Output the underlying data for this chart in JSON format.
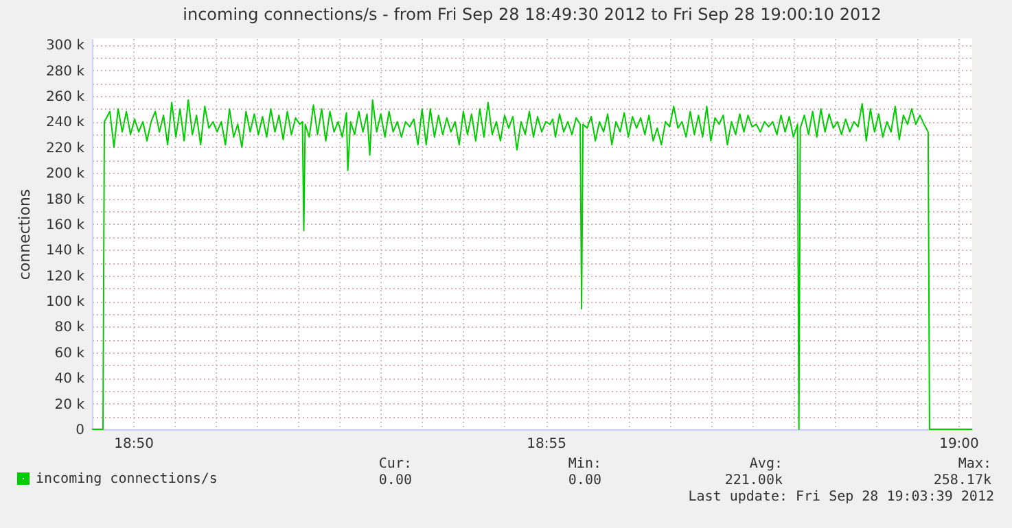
{
  "chart_data": {
    "type": "line",
    "title": "incoming connections/s - from Fri Sep 28 18:49:30 2012 to Fri Sep 28 19:00:10 2012",
    "ylabel": "connections",
    "x": [
      "2012-09-28T18:49:30",
      "2012-09-28T18:49:38",
      "2012-09-28T18:49:39",
      "2012-09-28T18:49:43",
      "2012-09-28T18:49:46",
      "2012-09-28T18:49:49",
      "2012-09-28T18:49:52",
      "2012-09-28T18:49:55",
      "2012-09-28T18:49:58",
      "2012-09-28T18:50:01",
      "2012-09-28T18:50:04",
      "2012-09-28T18:50:07",
      "2012-09-28T18:50:10",
      "2012-09-28T18:50:13",
      "2012-09-28T18:50:16",
      "2012-09-28T18:50:19",
      "2012-09-28T18:50:22",
      "2012-09-28T18:50:25",
      "2012-09-28T18:50:28",
      "2012-09-28T18:50:31",
      "2012-09-28T18:50:34",
      "2012-09-28T18:50:37",
      "2012-09-28T18:50:40",
      "2012-09-28T18:50:43",
      "2012-09-28T18:50:46",
      "2012-09-28T18:50:49",
      "2012-09-28T18:50:52",
      "2012-09-28T18:50:55",
      "2012-09-28T18:50:58",
      "2012-09-28T18:51:01",
      "2012-09-28T18:51:04",
      "2012-09-28T18:51:07",
      "2012-09-28T18:51:10",
      "2012-09-28T18:51:13",
      "2012-09-28T18:51:16",
      "2012-09-28T18:51:19",
      "2012-09-28T18:51:22",
      "2012-09-28T18:51:25",
      "2012-09-28T18:51:28",
      "2012-09-28T18:51:31",
      "2012-09-28T18:51:34",
      "2012-09-28T18:51:37",
      "2012-09-28T18:51:40",
      "2012-09-28T18:51:43",
      "2012-09-28T18:51:46",
      "2012-09-28T18:51:49",
      "2012-09-28T18:51:52",
      "2012-09-28T18:51:55",
      "2012-09-28T18:51:58",
      "2012-09-28T18:52:01",
      "2012-09-28T18:52:03",
      "2012-09-28T18:52:04",
      "2012-09-28T18:52:05",
      "2012-09-28T18:52:08",
      "2012-09-28T18:52:11",
      "2012-09-28T18:52:14",
      "2012-09-28T18:52:17",
      "2012-09-28T18:52:20",
      "2012-09-28T18:52:23",
      "2012-09-28T18:52:26",
      "2012-09-28T18:52:29",
      "2012-09-28T18:52:32",
      "2012-09-28T18:52:35",
      "2012-09-28T18:52:36",
      "2012-09-28T18:52:38",
      "2012-09-28T18:52:41",
      "2012-09-28T18:52:44",
      "2012-09-28T18:52:47",
      "2012-09-28T18:52:50",
      "2012-09-28T18:52:52",
      "2012-09-28T18:52:54",
      "2012-09-28T18:52:57",
      "2012-09-28T18:53:00",
      "2012-09-28T18:53:03",
      "2012-09-28T18:53:06",
      "2012-09-28T18:53:09",
      "2012-09-28T18:53:12",
      "2012-09-28T18:53:15",
      "2012-09-28T18:53:18",
      "2012-09-28T18:53:21",
      "2012-09-28T18:53:24",
      "2012-09-28T18:53:27",
      "2012-09-28T18:53:30",
      "2012-09-28T18:53:33",
      "2012-09-28T18:53:36",
      "2012-09-28T18:53:39",
      "2012-09-28T18:53:42",
      "2012-09-28T18:53:45",
      "2012-09-28T18:53:48",
      "2012-09-28T18:53:51",
      "2012-09-28T18:53:54",
      "2012-09-28T18:53:57",
      "2012-09-28T18:54:00",
      "2012-09-28T18:54:03",
      "2012-09-28T18:54:06",
      "2012-09-28T18:54:09",
      "2012-09-28T18:54:12",
      "2012-09-28T18:54:15",
      "2012-09-28T18:54:18",
      "2012-09-28T18:54:21",
      "2012-09-28T18:54:24",
      "2012-09-28T18:54:27",
      "2012-09-28T18:54:30",
      "2012-09-28T18:54:33",
      "2012-09-28T18:54:36",
      "2012-09-28T18:54:39",
      "2012-09-28T18:54:42",
      "2012-09-28T18:54:45",
      "2012-09-28T18:54:48",
      "2012-09-28T18:54:51",
      "2012-09-28T18:54:54",
      "2012-09-28T18:54:57",
      "2012-09-28T18:55:00",
      "2012-09-28T18:55:03",
      "2012-09-28T18:55:05",
      "2012-09-28T18:55:07",
      "2012-09-28T18:55:10",
      "2012-09-28T18:55:13",
      "2012-09-28T18:55:16",
      "2012-09-28T18:55:19",
      "2012-09-28T18:55:22",
      "2012-09-28T18:55:25",
      "2012-09-28T18:55:26",
      "2012-09-28T18:55:27",
      "2012-09-28T18:55:30",
      "2012-09-28T18:55:33",
      "2012-09-28T18:55:36",
      "2012-09-28T18:55:39",
      "2012-09-28T18:55:42",
      "2012-09-28T18:55:45",
      "2012-09-28T18:55:48",
      "2012-09-28T18:55:51",
      "2012-09-28T18:55:54",
      "2012-09-28T18:55:57",
      "2012-09-28T18:56:00",
      "2012-09-28T18:56:03",
      "2012-09-28T18:56:06",
      "2012-09-28T18:56:09",
      "2012-09-28T18:56:12",
      "2012-09-28T18:56:15",
      "2012-09-28T18:56:18",
      "2012-09-28T18:56:21",
      "2012-09-28T18:56:24",
      "2012-09-28T18:56:27",
      "2012-09-28T18:56:30",
      "2012-09-28T18:56:33",
      "2012-09-28T18:56:36",
      "2012-09-28T18:56:39",
      "2012-09-28T18:56:42",
      "2012-09-28T18:56:45",
      "2012-09-28T18:56:48",
      "2012-09-28T18:56:51",
      "2012-09-28T18:56:54",
      "2012-09-28T18:56:57",
      "2012-09-28T18:57:00",
      "2012-09-28T18:57:03",
      "2012-09-28T18:57:06",
      "2012-09-28T18:57:09",
      "2012-09-28T18:57:12",
      "2012-09-28T18:57:15",
      "2012-09-28T18:57:18",
      "2012-09-28T18:57:21",
      "2012-09-28T18:57:24",
      "2012-09-28T18:57:27",
      "2012-09-28T18:57:30",
      "2012-09-28T18:57:33",
      "2012-09-28T18:57:36",
      "2012-09-28T18:57:39",
      "2012-09-28T18:57:42",
      "2012-09-28T18:57:45",
      "2012-09-28T18:57:48",
      "2012-09-28T18:57:51",
      "2012-09-28T18:57:54",
      "2012-09-28T18:57:57",
      "2012-09-28T18:58:00",
      "2012-09-28T18:58:03",
      "2012-09-28T18:58:04",
      "2012-09-28T18:58:05",
      "2012-09-28T18:58:08",
      "2012-09-28T18:58:11",
      "2012-09-28T18:58:14",
      "2012-09-28T18:58:17",
      "2012-09-28T18:58:20",
      "2012-09-28T18:58:23",
      "2012-09-28T18:58:26",
      "2012-09-28T18:58:29",
      "2012-09-28T18:58:32",
      "2012-09-28T18:58:35",
      "2012-09-28T18:58:38",
      "2012-09-28T18:58:41",
      "2012-09-28T18:58:44",
      "2012-09-28T18:58:47",
      "2012-09-28T18:58:50",
      "2012-09-28T18:58:53",
      "2012-09-28T18:58:56",
      "2012-09-28T18:58:59",
      "2012-09-28T18:59:02",
      "2012-09-28T18:59:05",
      "2012-09-28T18:59:08",
      "2012-09-28T18:59:11",
      "2012-09-28T18:59:14",
      "2012-09-28T18:59:17",
      "2012-09-28T18:59:20",
      "2012-09-28T18:59:23",
      "2012-09-28T18:59:26",
      "2012-09-28T18:59:29",
      "2012-09-28T18:59:32",
      "2012-09-28T18:59:35",
      "2012-09-28T18:59:38",
      "2012-09-28T18:59:39",
      "2012-09-28T19:00:10"
    ],
    "series": [
      {
        "name": "incoming connections/s",
        "color": "#00cc00",
        "values": [
          0,
          0,
          240000,
          248000,
          220000,
          250000,
          232000,
          248000,
          230000,
          242000,
          232000,
          240000,
          225000,
          240000,
          248000,
          232000,
          245000,
          222000,
          255000,
          228000,
          250000,
          225000,
          257000,
          230000,
          245000,
          222000,
          252000,
          235000,
          240000,
          232000,
          240000,
          222000,
          250000,
          228000,
          238000,
          220000,
          248000,
          232000,
          246000,
          230000,
          244000,
          228000,
          250000,
          232000,
          245000,
          226000,
          248000,
          230000,
          243000,
          238000,
          240000,
          155000,
          238000,
          228000,
          253000,
          230000,
          250000,
          225000,
          248000,
          232000,
          240000,
          228000,
          247000,
          202000,
          240000,
          230000,
          248000,
          232000,
          246000,
          214000,
          257000,
          232000,
          246000,
          228000,
          248000,
          232000,
          240000,
          228000,
          240000,
          236000,
          242000,
          222000,
          250000,
          222000,
          250000,
          228000,
          245000,
          230000,
          243000,
          232000,
          240000,
          222000,
          248000,
          230000,
          246000,
          225000,
          250000,
          228000,
          255000,
          230000,
          240000,
          225000,
          245000,
          235000,
          244000,
          218000,
          240000,
          230000,
          248000,
          228000,
          244000,
          232000,
          240000,
          238000,
          242000,
          228000,
          246000,
          232000,
          240000,
          230000,
          243000,
          238000,
          94000,
          238000,
          235000,
          244000,
          225000,
          240000,
          232000,
          246000,
          222000,
          240000,
          232000,
          247000,
          228000,
          244000,
          235000,
          243000,
          230000,
          245000,
          225000,
          235000,
          222000,
          240000,
          236000,
          252000,
          235000,
          240000,
          228000,
          248000,
          230000,
          245000,
          228000,
          252000,
          225000,
          243000,
          238000,
          245000,
          222000,
          240000,
          230000,
          246000,
          232000,
          245000,
          236000,
          238000,
          232000,
          240000,
          236000,
          240000,
          230000,
          245000,
          232000,
          244000,
          228000,
          238000,
          0,
          235000,
          245000,
          230000,
          248000,
          228000,
          250000,
          232000,
          246000,
          235000,
          240000,
          230000,
          242000,
          232000,
          240000,
          236000,
          254000,
          225000,
          250000,
          232000,
          246000,
          228000,
          240000,
          232000,
          252000,
          226000,
          245000,
          238000,
          250000,
          238000,
          245000,
          238000,
          232000,
          0,
          0
        ]
      }
    ],
    "xlim": [
      "2012-09-28T18:49:30",
      "2012-09-28T19:00:10"
    ],
    "xticks": [
      {
        "value": "2012-09-28T18:50:00",
        "label": "18:50"
      },
      {
        "value": "2012-09-28T18:50:30",
        "label": null
      },
      {
        "value": "2012-09-28T18:51:00",
        "label": null
      },
      {
        "value": "2012-09-28T18:51:30",
        "label": null
      },
      {
        "value": "2012-09-28T18:52:00",
        "label": null
      },
      {
        "value": "2012-09-28T18:52:30",
        "label": null
      },
      {
        "value": "2012-09-28T18:53:00",
        "label": null
      },
      {
        "value": "2012-09-28T18:53:30",
        "label": null
      },
      {
        "value": "2012-09-28T18:54:00",
        "label": null
      },
      {
        "value": "2012-09-28T18:54:30",
        "label": null
      },
      {
        "value": "2012-09-28T18:55:00",
        "label": "18:55"
      },
      {
        "value": "2012-09-28T18:55:30",
        "label": null
      },
      {
        "value": "2012-09-28T18:56:00",
        "label": null
      },
      {
        "value": "2012-09-28T18:56:30",
        "label": null
      },
      {
        "value": "2012-09-28T18:57:00",
        "label": null
      },
      {
        "value": "2012-09-28T18:57:30",
        "label": null
      },
      {
        "value": "2012-09-28T18:58:00",
        "label": null
      },
      {
        "value": "2012-09-28T18:58:30",
        "label": null
      },
      {
        "value": "2012-09-28T18:59:00",
        "label": null
      },
      {
        "value": "2012-09-28T18:59:30",
        "label": null
      },
      {
        "value": "2012-09-28T19:00:00",
        "label": "19:00"
      }
    ],
    "ylim": [
      0,
      305000
    ],
    "yticks": [
      {
        "value": 0,
        "label": "0"
      },
      {
        "value": 10000,
        "label": null
      },
      {
        "value": 20000,
        "label": "20 k"
      },
      {
        "value": 30000,
        "label": null
      },
      {
        "value": 40000,
        "label": "40 k"
      },
      {
        "value": 50000,
        "label": null
      },
      {
        "value": 60000,
        "label": "60 k"
      },
      {
        "value": 70000,
        "label": null
      },
      {
        "value": 80000,
        "label": "80 k"
      },
      {
        "value": 90000,
        "label": null
      },
      {
        "value": 100000,
        "label": "100 k"
      },
      {
        "value": 110000,
        "label": null
      },
      {
        "value": 120000,
        "label": "120 k"
      },
      {
        "value": 130000,
        "label": null
      },
      {
        "value": 140000,
        "label": "140 k"
      },
      {
        "value": 150000,
        "label": null
      },
      {
        "value": 160000,
        "label": "160 k"
      },
      {
        "value": 170000,
        "label": null
      },
      {
        "value": 180000,
        "label": "180 k"
      },
      {
        "value": 190000,
        "label": null
      },
      {
        "value": 200000,
        "label": "200 k"
      },
      {
        "value": 210000,
        "label": null
      },
      {
        "value": 220000,
        "label": "220 k"
      },
      {
        "value": 230000,
        "label": null
      },
      {
        "value": 240000,
        "label": "240 k"
      },
      {
        "value": 250000,
        "label": null
      },
      {
        "value": 260000,
        "label": "260 k"
      },
      {
        "value": 270000,
        "label": null
      },
      {
        "value": 280000,
        "label": "280 k"
      },
      {
        "value": 290000,
        "label": null
      },
      {
        "value": 300000,
        "label": "300 k"
      }
    ],
    "grid": true,
    "legend": "bottom left",
    "line_style": "solid",
    "annotations": [
      "Cur:",
      "0.00",
      "Min:",
      "0.00",
      "Avg:",
      "221.00k",
      "Max:",
      "258.17k",
      "Last update: Fri Sep 28 19:03:39 2012"
    ]
  }
}
